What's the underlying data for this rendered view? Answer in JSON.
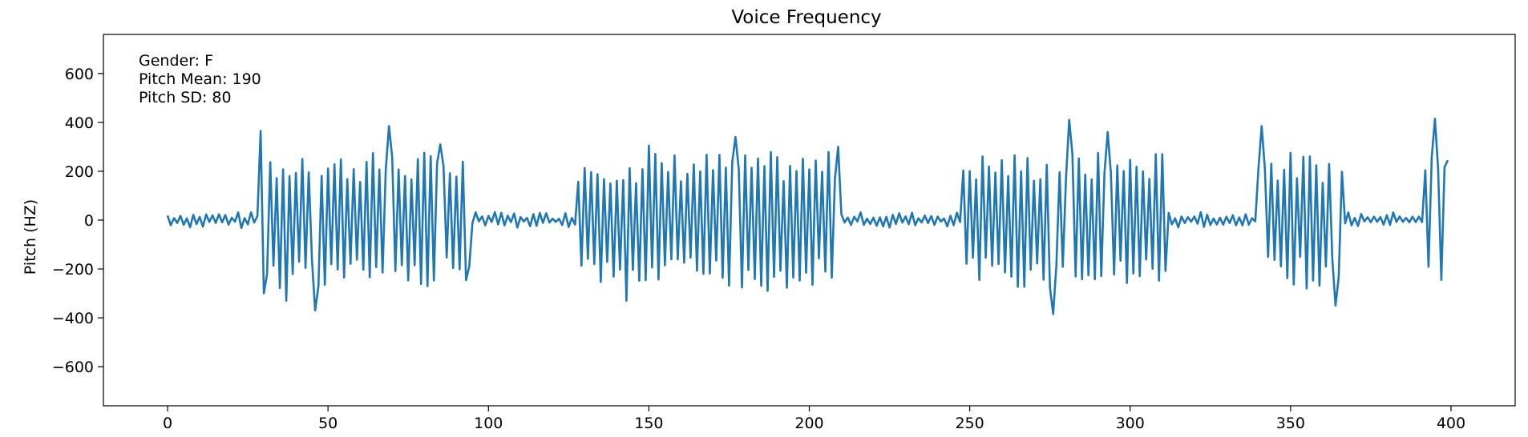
{
  "chart_data": {
    "type": "line",
    "title": "Voice Frequency",
    "xlabel": "",
    "ylabel": "Pitch (HZ)",
    "xlim": [
      -20,
      420
    ],
    "ylim": [
      -760,
      760
    ],
    "xticks": [
      0,
      50,
      100,
      150,
      200,
      250,
      300,
      350,
      400
    ],
    "yticks": [
      -600,
      -400,
      -200,
      0,
      200,
      400,
      600
    ],
    "grid": false,
    "line_color": "#1f77b4",
    "annotations": [
      "Gender: F",
      "Pitch Mean: 190",
      "Pitch SD: 80"
    ],
    "segments": [
      {
        "x_start": 0,
        "x_end": 29,
        "active": false
      },
      {
        "x_start": 29,
        "x_end": 95,
        "active": true
      },
      {
        "x_start": 95,
        "x_end": 128,
        "active": false
      },
      {
        "x_start": 128,
        "x_end": 210,
        "active": true
      },
      {
        "x_start": 210,
        "x_end": 248,
        "active": false
      },
      {
        "x_start": 248,
        "x_end": 312,
        "active": true
      },
      {
        "x_start": 312,
        "x_end": 340,
        "active": false
      },
      {
        "x_start": 340,
        "x_end": 367,
        "active": true
      },
      {
        "x_start": 367,
        "x_end": 392,
        "active": false
      },
      {
        "x_start": 392,
        "x_end": 399,
        "active": true
      }
    ],
    "peaks": [
      {
        "x": 29,
        "y": 365
      },
      {
        "x": 30,
        "y": -300
      },
      {
        "x": 37,
        "y": -330
      },
      {
        "x": 46,
        "y": -370
      },
      {
        "x": 69,
        "y": 385
      },
      {
        "x": 85,
        "y": 310
      },
      {
        "x": 94,
        "y": -190
      },
      {
        "x": 143,
        "y": -330
      },
      {
        "x": 150,
        "y": 305
      },
      {
        "x": 177,
        "y": 340
      },
      {
        "x": 187,
        "y": -290
      },
      {
        "x": 209,
        "y": 300
      },
      {
        "x": 276,
        "y": -385
      },
      {
        "x": 281,
        "y": 410
      },
      {
        "x": 293,
        "y": 360
      },
      {
        "x": 341,
        "y": 385
      },
      {
        "x": 364,
        "y": -350
      },
      {
        "x": 395,
        "y": 415
      },
      {
        "x": 397,
        "y": -245
      },
      {
        "x": 399,
        "y": 245
      }
    ]
  }
}
